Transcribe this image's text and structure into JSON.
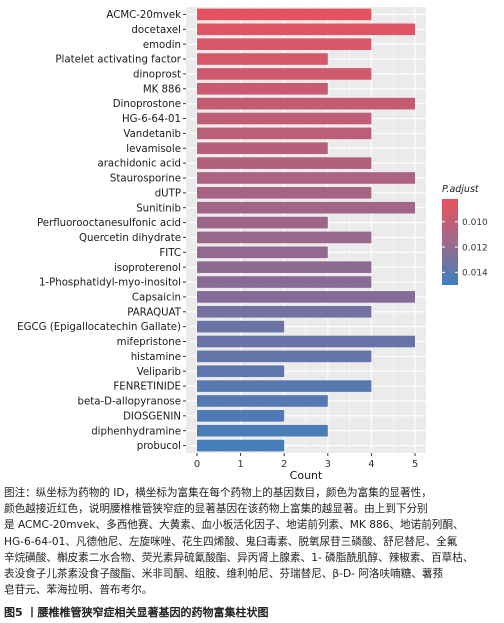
{
  "chart_data": {
    "type": "bar",
    "orientation": "horizontal",
    "categories": [
      "ACMC-20mvek",
      "docetaxel",
      "emodin",
      "Platelet activating factor",
      "dinoprost",
      "MK 886",
      "Dinoprostone",
      "HG-6-64-01",
      "Vandetanib",
      "levamisole",
      "arachidonic acid",
      "Staurosporine",
      "dUTP",
      "Sunitinib",
      "Perfluorooctanesulfonic acid",
      "Quercetin dihydrate",
      "FITC",
      "isoproterenol",
      "1-Phosphatidyl-myo-inositol",
      "Capsaicin",
      "PARAQUAT",
      "EGCG (Epigallocatechin Gallate)",
      "mifepristone",
      "histamine",
      "Veliparib",
      "FENRETINIDE",
      "beta-D-allopyranose",
      "DIOSGENIN",
      "diphenhydramine",
      "probucol"
    ],
    "values": [
      4,
      5,
      4,
      3,
      4,
      3,
      5,
      4,
      4,
      3,
      4,
      5,
      4,
      5,
      3,
      4,
      3,
      4,
      4,
      5,
      4,
      2,
      5,
      4,
      2,
      4,
      3,
      2,
      3,
      2
    ],
    "p_adjust": [
      0.0083,
      0.0086,
      0.0088,
      0.009,
      0.0092,
      0.0094,
      0.0096,
      0.0098,
      0.01,
      0.0102,
      0.0104,
      0.0106,
      0.0108,
      0.011,
      0.0112,
      0.0114,
      0.0116,
      0.0118,
      0.012,
      0.0122,
      0.0128,
      0.0132,
      0.0133,
      0.0135,
      0.0137,
      0.0139,
      0.0141,
      0.0143,
      0.0145,
      0.0147
    ],
    "xlabel": "Count",
    "xlim": [
      0,
      5
    ],
    "xticks": [
      0,
      1,
      2,
      3,
      4,
      5
    ],
    "grid": true,
    "legend": {
      "title": "P.adjust",
      "placement": "right",
      "ticks": [
        0.01,
        0.012,
        0.014
      ],
      "tick_labels": [
        "0.010",
        "0.012",
        "0.014"
      ],
      "range": [
        0.0082,
        0.015
      ],
      "color_low": "#e8525f",
      "color_high": "#3d7fbf"
    }
  },
  "caption": {
    "lines": [
      "图注：纵坐标为药物的 ID，横坐标为富集在每个药物上的基因数目，颜色为富集的显著性，",
      "颜色越接近红色，说明腰椎椎管狭窄症的显著基因在该药物上富集的越显著。由上到下分别",
      "是 ACMC-20mvek、多西他赛、大黄素、血小板活化因子、地诺前列素、MK 886、地诺前列酮、",
      "HG-6-64-01、凡德他尼、左旋咪唑、花生四烯酸、鬼臼毒素、脱氧尿苷三磷酸、舒尼替尼、全氟",
      "辛烷磺酸、槲皮素二水合物、荧光素异硫氰酸酯、异丙肾上腺素、1- 磷脂酰肌醇、辣椒素、百草枯、",
      "表没食子儿茶素没食子酸酯、米非司酮、组胺、维利帕尼、芬瑞替尼、β-D- 阿洛呋喃糖、薯蓣",
      "皂苷元、苯海拉明、普布考尔。"
    ],
    "figure_title": "图5 丨腰椎椎管狭窄症相关显著基因的药物富集柱状图"
  }
}
